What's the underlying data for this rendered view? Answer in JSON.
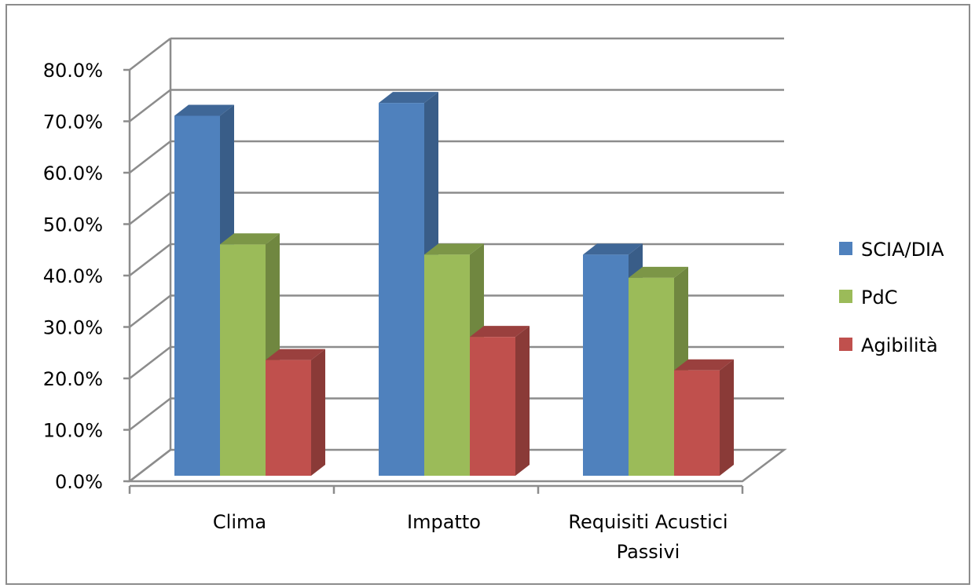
{
  "chart_data": {
    "type": "bar",
    "categories": [
      [
        "Clima"
      ],
      [
        "Impatto"
      ],
      [
        "Requisiti Acustici",
        "Passivi"
      ]
    ],
    "series": [
      {
        "name": "SCIA/DIA",
        "values": [
          70.0,
          72.5,
          43.0
        ],
        "color": "#4f81bd"
      },
      {
        "name": "PdC",
        "values": [
          45.0,
          43.0,
          38.5
        ],
        "color": "#9bbb59"
      },
      {
        "name": "Agibilità",
        "values": [
          22.5,
          27.0,
          20.5
        ],
        "color": "#c0504d"
      }
    ],
    "yticks": [
      "0.0%",
      "10.0%",
      "20.0%",
      "30.0%",
      "40.0%",
      "50.0%",
      "60.0%",
      "70.0%",
      "80.0%"
    ],
    "ylim": [
      0,
      80
    ],
    "grid": true,
    "legend_position": "right",
    "style": "3d-clustered-column"
  }
}
